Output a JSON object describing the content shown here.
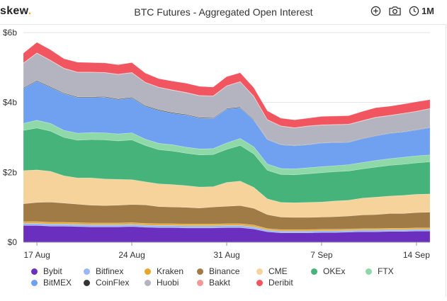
{
  "brand": {
    "name": "skew",
    "dot": "."
  },
  "header": {
    "title": "BTC Futures - Aggregated Open Interest",
    "range_label": "1M"
  },
  "icons": {
    "add": "plus-circle-icon",
    "screenshot": "camera-icon",
    "range": "clock-icon"
  },
  "chart_data": {
    "type": "area",
    "stacked": true,
    "title": "BTC Futures - Aggregated Open Interest",
    "xlabel": "",
    "ylabel": "",
    "ylim": [
      0,
      6
    ],
    "y_ticks": [
      "$0",
      "$2b",
      "$4b",
      "$6b"
    ],
    "y_tick_values": [
      0,
      2,
      4,
      6
    ],
    "x_ticks": [
      "17 Aug",
      "24 Aug",
      "31 Aug",
      "7 Sep",
      "14 Sep"
    ],
    "x_tick_index": [
      1,
      8,
      15,
      22,
      29
    ],
    "grid": true,
    "legend_position": "bottom",
    "categories": [
      "16 Aug",
      "17 Aug",
      "18 Aug",
      "19 Aug",
      "20 Aug",
      "21 Aug",
      "22 Aug",
      "23 Aug",
      "24 Aug",
      "25 Aug",
      "26 Aug",
      "27 Aug",
      "28 Aug",
      "29 Aug",
      "30 Aug",
      "31 Aug",
      "1 Sep",
      "2 Sep",
      "3 Sep",
      "4 Sep",
      "5 Sep",
      "6 Sep",
      "7 Sep",
      "8 Sep",
      "9 Sep",
      "10 Sep",
      "11 Sep",
      "12 Sep",
      "13 Sep",
      "14 Sep",
      "15 Sep"
    ],
    "series": [
      {
        "name": "Bybit",
        "color": "#6a2fbf",
        "values": [
          0.48,
          0.48,
          0.46,
          0.46,
          0.45,
          0.44,
          0.44,
          0.44,
          0.45,
          0.43,
          0.42,
          0.42,
          0.41,
          0.41,
          0.41,
          0.42,
          0.42,
          0.38,
          0.3,
          0.27,
          0.27,
          0.27,
          0.28,
          0.28,
          0.29,
          0.3,
          0.3,
          0.31,
          0.31,
          0.32,
          0.32
        ]
      },
      {
        "name": "Bitfinex",
        "color": "#9ab6f5",
        "values": [
          0.06,
          0.06,
          0.06,
          0.06,
          0.06,
          0.06,
          0.06,
          0.06,
          0.06,
          0.06,
          0.06,
          0.06,
          0.06,
          0.06,
          0.06,
          0.06,
          0.06,
          0.06,
          0.05,
          0.05,
          0.05,
          0.05,
          0.05,
          0.05,
          0.05,
          0.05,
          0.05,
          0.05,
          0.05,
          0.05,
          0.05
        ]
      },
      {
        "name": "Kraken",
        "color": "#e7a72b",
        "values": [
          0.05,
          0.05,
          0.05,
          0.05,
          0.05,
          0.05,
          0.05,
          0.05,
          0.05,
          0.05,
          0.05,
          0.05,
          0.05,
          0.05,
          0.05,
          0.05,
          0.05,
          0.05,
          0.04,
          0.04,
          0.04,
          0.04,
          0.04,
          0.04,
          0.04,
          0.04,
          0.04,
          0.04,
          0.04,
          0.04,
          0.04
        ]
      },
      {
        "name": "Binance",
        "color": "#a07b46",
        "values": [
          0.51,
          0.55,
          0.58,
          0.55,
          0.53,
          0.51,
          0.5,
          0.51,
          0.52,
          0.53,
          0.49,
          0.48,
          0.48,
          0.46,
          0.49,
          0.5,
          0.52,
          0.48,
          0.4,
          0.36,
          0.35,
          0.35,
          0.35,
          0.36,
          0.37,
          0.39,
          0.4,
          0.42,
          0.42,
          0.44,
          0.45
        ]
      },
      {
        "name": "CME",
        "color": "#f5d39b",
        "values": [
          0.95,
          0.93,
          0.88,
          0.78,
          0.75,
          0.78,
          0.76,
          0.74,
          0.71,
          0.66,
          0.65,
          0.64,
          0.62,
          0.6,
          0.58,
          0.68,
          0.7,
          0.6,
          0.45,
          0.42,
          0.42,
          0.43,
          0.43,
          0.45,
          0.45,
          0.48,
          0.5,
          0.5,
          0.52,
          0.52,
          0.52
        ]
      },
      {
        "name": "OKEx",
        "color": "#45b37a",
        "values": [
          1.15,
          1.2,
          1.15,
          1.1,
          1.08,
          1.1,
          1.12,
          1.1,
          1.14,
          1.04,
          0.98,
          0.96,
          0.93,
          0.92,
          0.92,
          0.95,
          1.02,
          0.96,
          0.82,
          0.8,
          0.8,
          0.82,
          0.84,
          0.84,
          0.84,
          0.84,
          0.86,
          0.88,
          0.89,
          0.9,
          0.92
        ]
      },
      {
        "name": "FTX",
        "color": "#8fd9a8",
        "values": [
          0.2,
          0.22,
          0.22,
          0.2,
          0.2,
          0.2,
          0.2,
          0.2,
          0.2,
          0.18,
          0.18,
          0.18,
          0.17,
          0.17,
          0.17,
          0.18,
          0.2,
          0.2,
          0.18,
          0.17,
          0.17,
          0.17,
          0.17,
          0.17,
          0.18,
          0.18,
          0.19,
          0.19,
          0.2,
          0.2,
          0.2
        ]
      },
      {
        "name": "BitMEX",
        "color": "#70a1f0",
        "values": [
          1.0,
          1.12,
          1.03,
          1.05,
          1.02,
          1.0,
          1.02,
          0.98,
          1.0,
          0.94,
          0.94,
          0.9,
          0.92,
          0.88,
          0.86,
          0.97,
          0.88,
          0.76,
          0.7,
          0.68,
          0.66,
          0.66,
          0.68,
          0.66,
          0.64,
          0.68,
          0.7,
          0.72,
          0.72,
          0.74,
          0.78
        ]
      },
      {
        "name": "CoinFlex",
        "color": "#333333",
        "values": [
          0.02,
          0.02,
          0.02,
          0.02,
          0.02,
          0.02,
          0.02,
          0.02,
          0.02,
          0.02,
          0.02,
          0.02,
          0.02,
          0.02,
          0.02,
          0.02,
          0.02,
          0.02,
          0.01,
          0.01,
          0.01,
          0.01,
          0.01,
          0.01,
          0.01,
          0.01,
          0.01,
          0.01,
          0.01,
          0.01,
          0.01
        ]
      },
      {
        "name": "Huobi",
        "color": "#b4b4c0",
        "values": [
          0.7,
          0.78,
          0.75,
          0.7,
          0.7,
          0.7,
          0.68,
          0.7,
          0.7,
          0.66,
          0.64,
          0.64,
          0.62,
          0.62,
          0.62,
          0.64,
          0.72,
          0.66,
          0.55,
          0.52,
          0.5,
          0.52,
          0.5,
          0.5,
          0.5,
          0.5,
          0.52,
          0.5,
          0.52,
          0.52,
          0.53
        ]
      },
      {
        "name": "Bakkt",
        "color": "#f09a9a",
        "values": [
          0.01,
          0.01,
          0.01,
          0.01,
          0.01,
          0.01,
          0.01,
          0.01,
          0.01,
          0.01,
          0.01,
          0.01,
          0.01,
          0.01,
          0.01,
          0.01,
          0.01,
          0.01,
          0.01,
          0.01,
          0.01,
          0.01,
          0.01,
          0.01,
          0.01,
          0.01,
          0.01,
          0.01,
          0.01,
          0.01,
          0.01
        ]
      },
      {
        "name": "Deribit",
        "color": "#f05560",
        "values": [
          0.28,
          0.3,
          0.3,
          0.27,
          0.28,
          0.27,
          0.27,
          0.27,
          0.28,
          0.26,
          0.24,
          0.25,
          0.26,
          0.26,
          0.25,
          0.26,
          0.25,
          0.24,
          0.25,
          0.22,
          0.22,
          0.22,
          0.24,
          0.24,
          0.24,
          0.26,
          0.27,
          0.26,
          0.26,
          0.27,
          0.25
        ]
      }
    ]
  }
}
